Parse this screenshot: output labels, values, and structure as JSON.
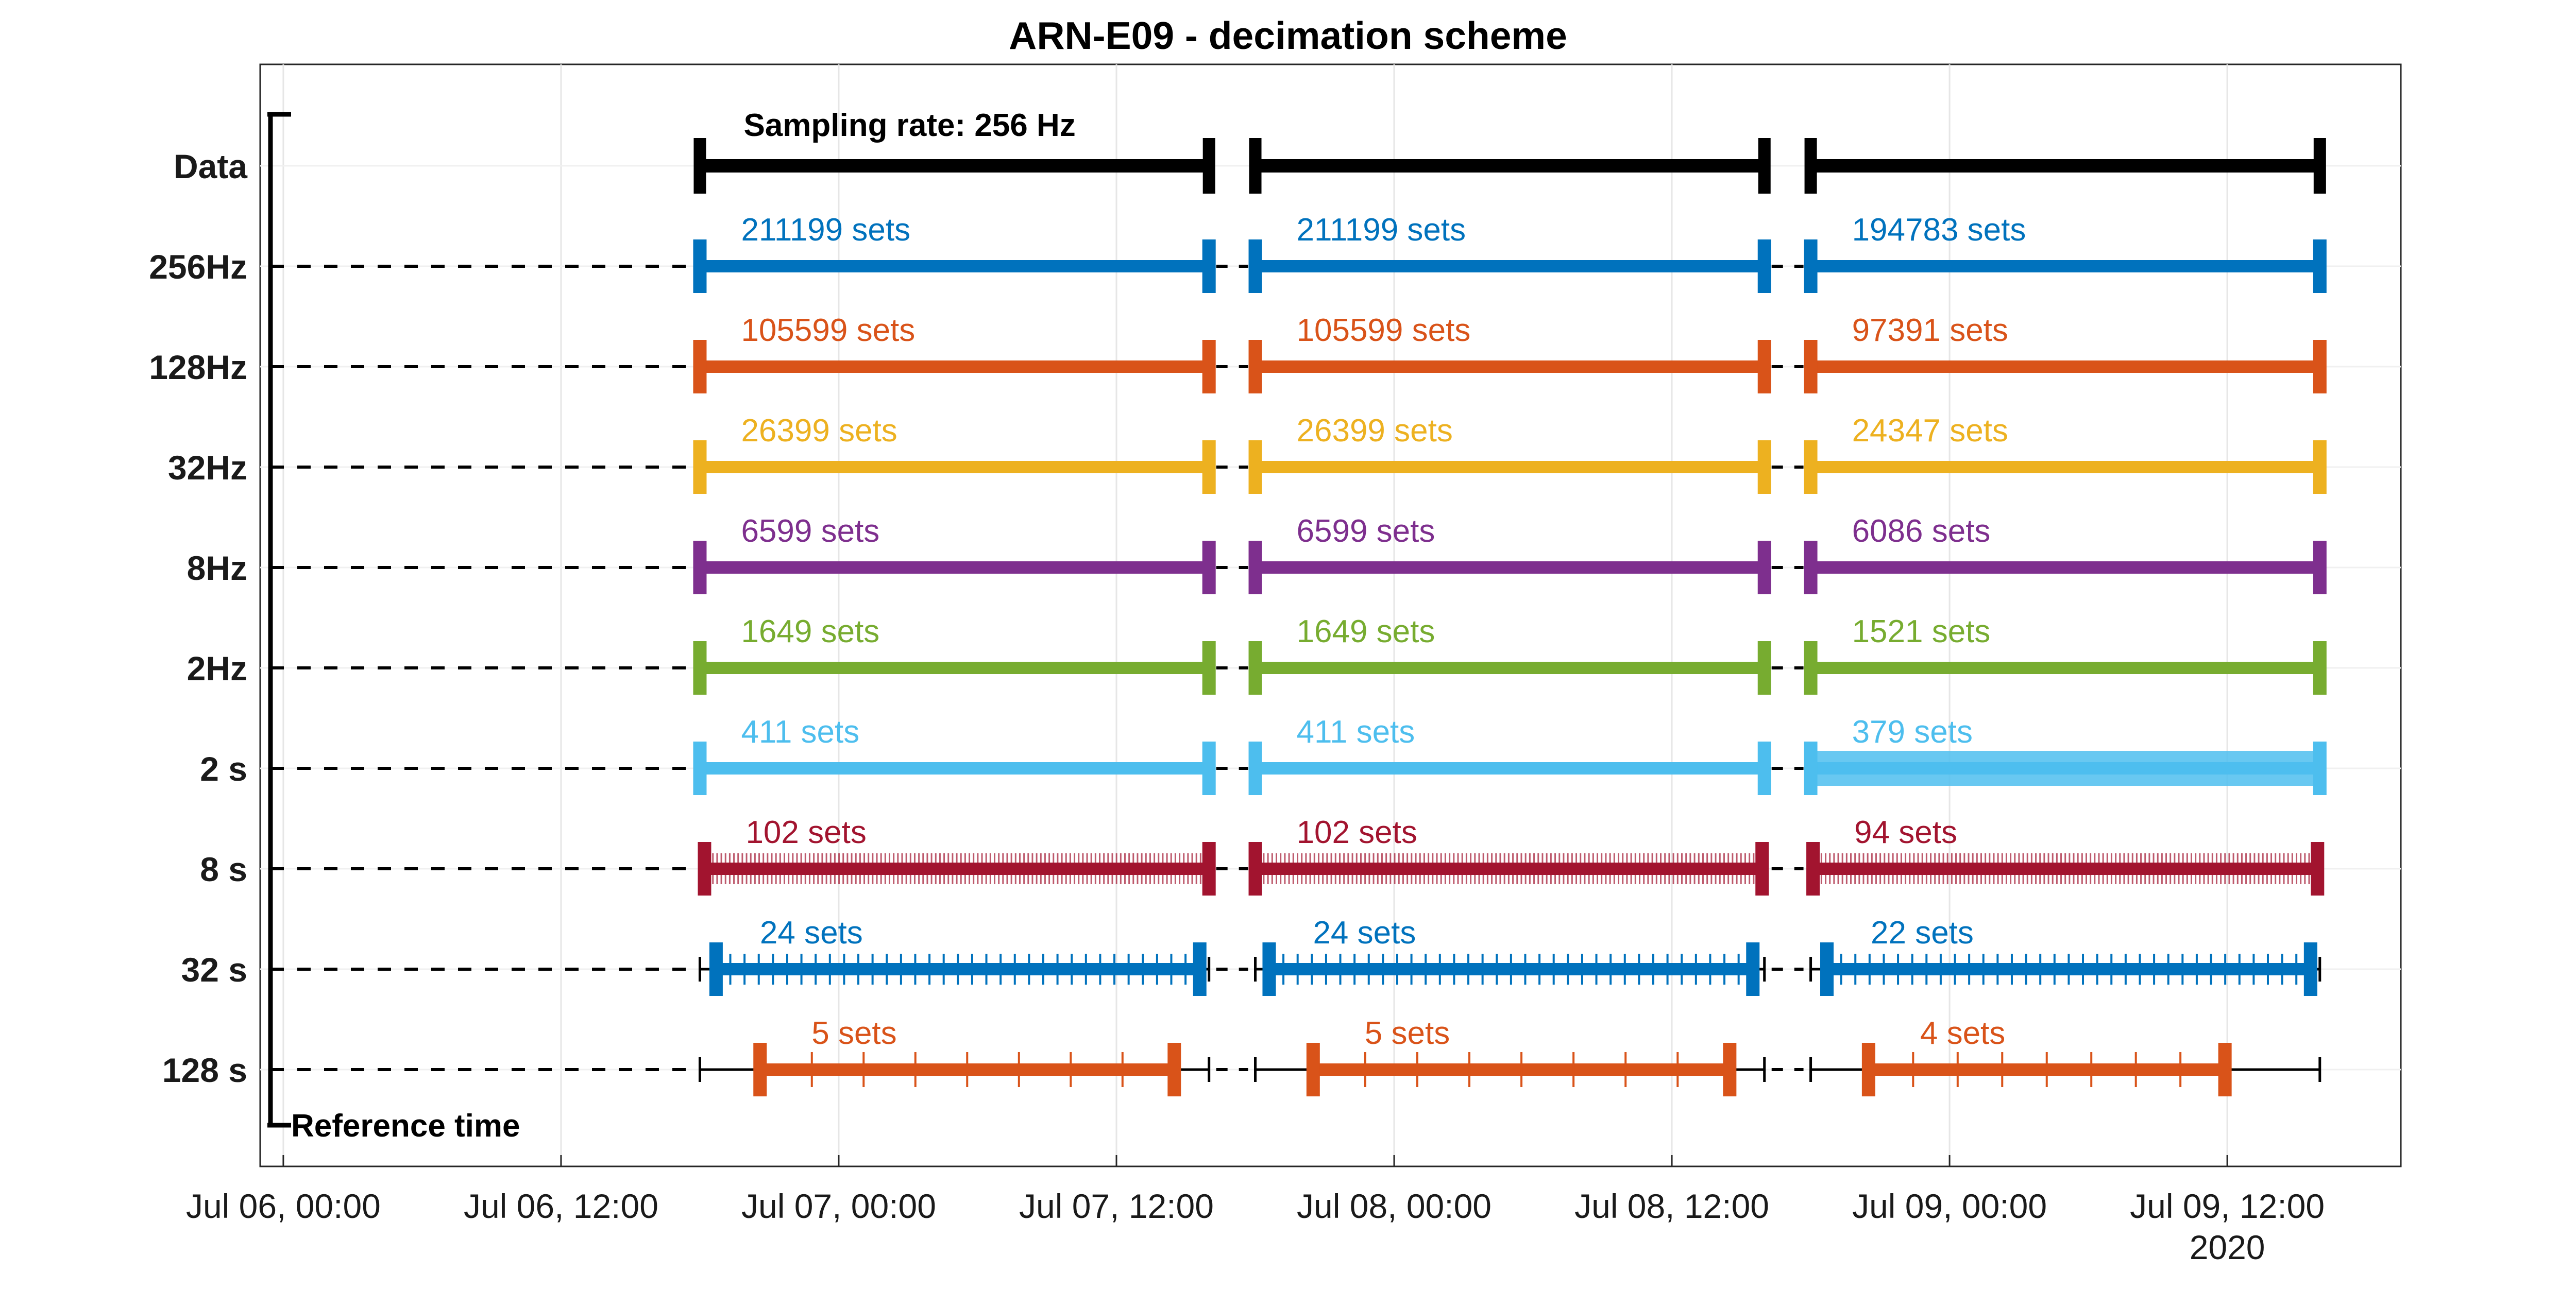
{
  "chart_data": {
    "type": "timeline",
    "title": "ARN-E09 - decimation scheme",
    "x_unit": "hours since Jul 06, 00:00",
    "xlim": [
      -1,
      91.5
    ],
    "x_ticks": [
      {
        "value": 0,
        "label": "Jul 06, 00:00"
      },
      {
        "value": 12,
        "label": "Jul 06, 12:00"
      },
      {
        "value": 24,
        "label": "Jul 07, 00:00"
      },
      {
        "value": 36,
        "label": "Jul 07, 12:00"
      },
      {
        "value": 48,
        "label": "Jul 08, 00:00"
      },
      {
        "value": 60,
        "label": "Jul 08, 12:00"
      },
      {
        "value": 72,
        "label": "Jul 09, 00:00"
      },
      {
        "value": 84,
        "label": "Jul 09, 12:00"
      }
    ],
    "x_year_label": "2020",
    "grid": true,
    "categories": [
      "Data",
      "256Hz",
      "128Hz",
      "32Hz",
      "8Hz",
      "2Hz",
      "2 s",
      "8 s",
      "32 s",
      "128 s"
    ],
    "reference_label": "Reference time",
    "sampling_rate_label": "Sampling rate: 256 Hz",
    "segments": [
      [
        18,
        40
      ],
      [
        42,
        64
      ],
      [
        66,
        88
      ]
    ],
    "series": [
      {
        "category": "Data",
        "color": "#000000",
        "sets": [
          null,
          null,
          null
        ],
        "ranges": [
          [
            18,
            40
          ],
          [
            42,
            64
          ],
          [
            66,
            88
          ]
        ]
      },
      {
        "category": "256Hz",
        "color": "#0072BD",
        "sets": [
          "211199 sets",
          "211199 sets",
          "194783 sets"
        ],
        "ranges": [
          [
            18,
            40
          ],
          [
            42,
            64
          ],
          [
            66,
            88
          ]
        ]
      },
      {
        "category": "128Hz",
        "color": "#D95319",
        "sets": [
          "105599 sets",
          "105599 sets",
          "97391 sets"
        ],
        "ranges": [
          [
            18,
            40
          ],
          [
            42,
            64
          ],
          [
            66,
            88
          ]
        ]
      },
      {
        "category": "32Hz",
        "color": "#EDB120",
        "sets": [
          "26399 sets",
          "26399 sets",
          "24347 sets"
        ],
        "ranges": [
          [
            18,
            40
          ],
          [
            42,
            64
          ],
          [
            66,
            88
          ]
        ]
      },
      {
        "category": "8Hz",
        "color": "#7E2F8E",
        "sets": [
          "6599 sets",
          "6599 sets",
          "6086 sets"
        ],
        "ranges": [
          [
            18,
            40
          ],
          [
            42,
            64
          ],
          [
            66,
            88
          ]
        ]
      },
      {
        "category": "2Hz",
        "color": "#77AC30",
        "sets": [
          "1649 sets",
          "1649 sets",
          "1521 sets"
        ],
        "ranges": [
          [
            18,
            40
          ],
          [
            42,
            64
          ],
          [
            66,
            88
          ]
        ]
      },
      {
        "category": "2 s",
        "color": "#4DBEEE",
        "sets": [
          "411 sets",
          "411 sets",
          "379 sets"
        ],
        "ranges": [
          [
            18,
            40
          ],
          [
            42,
            64
          ],
          [
            66,
            88
          ]
        ]
      },
      {
        "category": "8 s",
        "color": "#A2142F",
        "sets": [
          "102 sets",
          "102 sets",
          "94 sets"
        ],
        "ranges": [
          [
            18.2,
            40
          ],
          [
            42,
            63.9
          ],
          [
            66.1,
            87.9
          ]
        ]
      },
      {
        "category": "32 s",
        "color": "#0072BD",
        "sets": [
          "24 sets",
          "24 sets",
          "22 sets"
        ],
        "ranges": [
          [
            18.7,
            39.6
          ],
          [
            42.6,
            63.5
          ],
          [
            66.7,
            87.6
          ]
        ]
      },
      {
        "category": "128 s",
        "color": "#D95319",
        "sets": [
          "5 sets",
          "5 sets",
          "4 sets"
        ],
        "ranges": [
          [
            20.6,
            38.5
          ],
          [
            44.5,
            62.5
          ],
          [
            68.5,
            83.9
          ]
        ]
      }
    ]
  }
}
